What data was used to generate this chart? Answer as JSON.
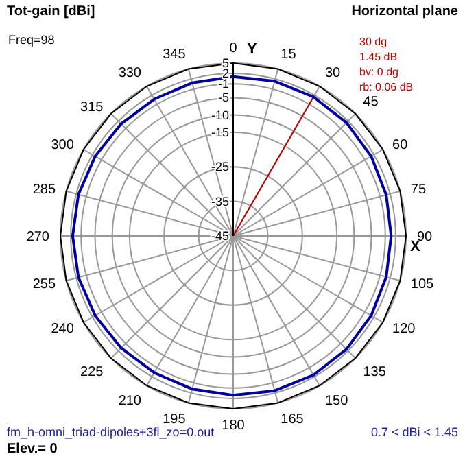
{
  "chart_data": {
    "type": "radar",
    "title": "Tot-gain [dBi]",
    "subtitle": "Horizontal plane",
    "xlabel": "X",
    "ylabel": "Y",
    "categories": [
      "0",
      "15",
      "30",
      "45",
      "60",
      "75",
      "90",
      "105",
      "120",
      "135",
      "150",
      "165",
      "180",
      "195",
      "210",
      "225",
      "240",
      "255",
      "270",
      "285",
      "300",
      "315",
      "330",
      "345"
    ],
    "series": [
      {
        "color": "#0000a0",
        "values": [
          1.1,
          1.35,
          1.45,
          1.35,
          1.1,
          0.85,
          0.7,
          0.85,
          1.1,
          1.35,
          1.45,
          1.35,
          1.1,
          0.85,
          0.7,
          0.85,
          1.1,
          1.35,
          1.45,
          1.35,
          1.1,
          0.85,
          0.7,
          0.85
        ]
      }
    ],
    "ylim": [
      -45,
      5
    ],
    "yticks": [
      -45,
      -35,
      -25,
      -15,
      -10,
      -5,
      -1,
      2,
      5
    ],
    "grid": true,
    "marker": "none",
    "line_style": "solid",
    "annotations": [
      "Freq=98",
      {
        "text": "30 dg",
        "x": "30"
      },
      "1.45 dB",
      "bv: 0 dg",
      "rb: 0.06 dB",
      "fm_h-omni_triad-dipoles+3fl_zo=0.out",
      "0.7 < dBi < 1.45",
      "Elev.= 0"
    ]
  }
}
